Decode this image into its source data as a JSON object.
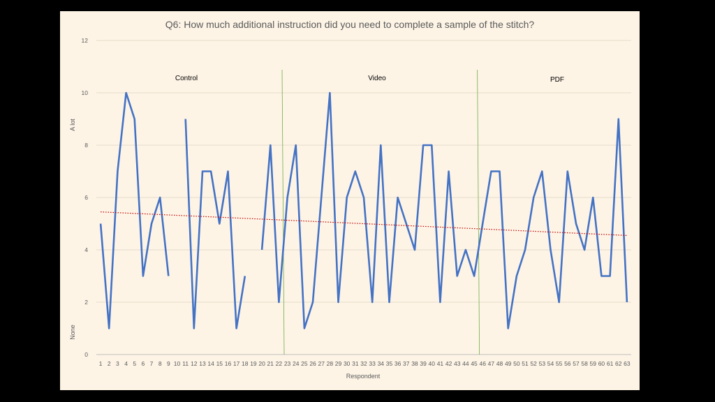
{
  "chart_data": {
    "type": "line",
    "title": "Q6: How much additional instruction did you need to complete a sample of the stitch?",
    "xlabel": "Respondent",
    "ylabel_top": "A lot",
    "ylabel_bottom": "None",
    "ylim": [
      0,
      12
    ],
    "yticks": [
      "0",
      "2",
      "4",
      "6",
      "8",
      "10",
      "12"
    ],
    "ytick_values": [
      0,
      2,
      4,
      6,
      8,
      10,
      12
    ],
    "grid": true,
    "categories": [
      "1",
      "2",
      "3",
      "4",
      "5",
      "6",
      "7",
      "8",
      "9",
      "10",
      "11",
      "12",
      "13",
      "14",
      "15",
      "16",
      "17",
      "18",
      "19",
      "20",
      "21",
      "22",
      "23",
      "24",
      "25",
      "26",
      "27",
      "28",
      "29",
      "30",
      "31",
      "32",
      "33",
      "34",
      "35",
      "36",
      "37",
      "38",
      "39",
      "40",
      "41",
      "42",
      "43",
      "44",
      "45",
      "46",
      "47",
      "48",
      "49",
      "50",
      "51",
      "52",
      "53",
      "54",
      "55",
      "56",
      "57",
      "58",
      "59",
      "60",
      "61",
      "62",
      "63"
    ],
    "series": [
      {
        "color": "#4472c4",
        "values": [
          5,
          1,
          7,
          10,
          9,
          3,
          5,
          6,
          3,
          null,
          9,
          1,
          7,
          7,
          5,
          7,
          1,
          3,
          null,
          4,
          8,
          2,
          6,
          8,
          1,
          2,
          6,
          10,
          2,
          6,
          7,
          6,
          2,
          8,
          2,
          6,
          5,
          4,
          8,
          8,
          2,
          7,
          3,
          4,
          3,
          5,
          7,
          7,
          1,
          3,
          4,
          6,
          7,
          4,
          2,
          7,
          5,
          4,
          6,
          3,
          3,
          9,
          2
        ]
      }
    ],
    "trendline": {
      "color": "#c00000",
      "style": "dotted",
      "start": 5.45,
      "end": 4.55
    },
    "regions": [
      {
        "label": "Control"
      },
      {
        "label": "Video"
      },
      {
        "label": "PDF"
      }
    ],
    "divider_color": "#70ad47",
    "dividers_after": [
      22.5,
      45.5
    ]
  }
}
